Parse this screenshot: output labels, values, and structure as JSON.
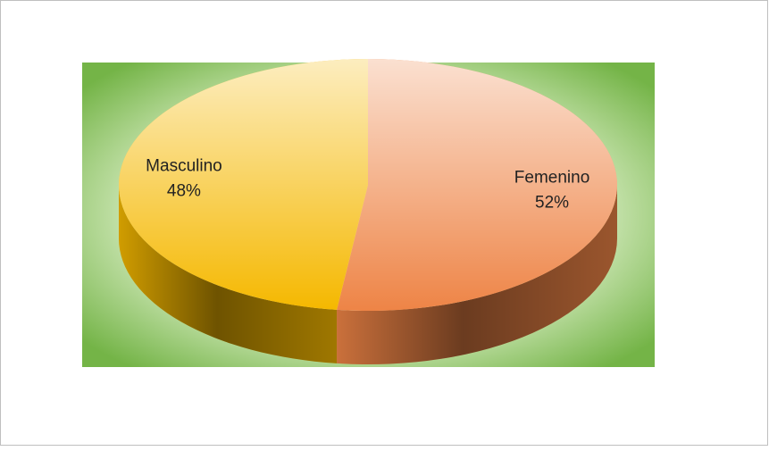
{
  "chart_data": {
    "type": "pie",
    "categories": [
      "Femenino",
      "Masculino"
    ],
    "values": [
      52,
      48
    ],
    "value_labels": [
      "52%",
      "48%"
    ],
    "colors": [
      "#ee8446",
      "#f5b800"
    ]
  }
}
